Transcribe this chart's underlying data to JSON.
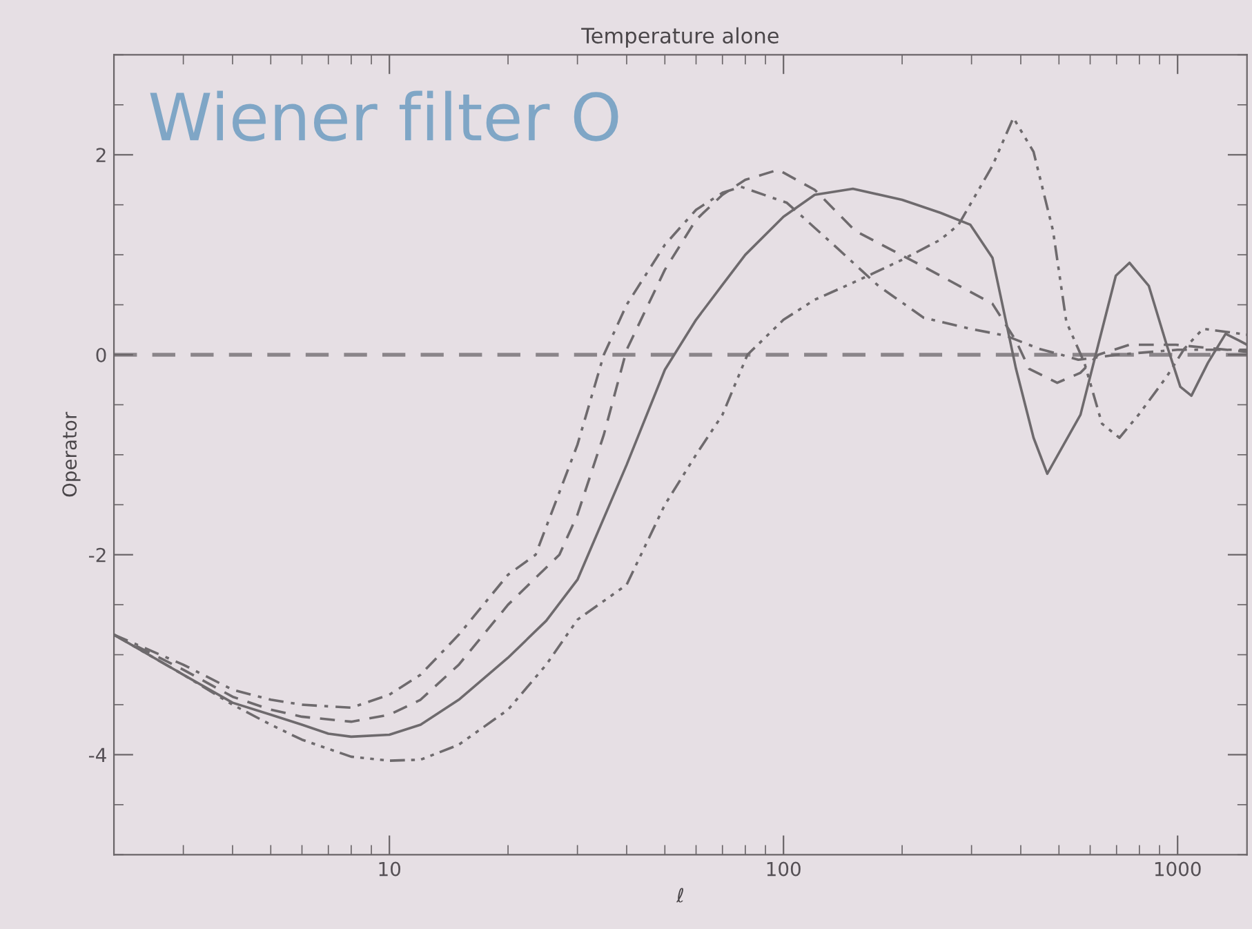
{
  "chart_data": {
    "type": "line",
    "title": "Temperature alone",
    "xlabel": "ℓ",
    "ylabel": "Operator",
    "annotations": [
      "Wiener filter O"
    ],
    "log": "x",
    "xlim": [
      2,
      1500
    ],
    "xticks": [
      10,
      100,
      1000
    ],
    "ylim": [
      -5,
      3
    ],
    "yticks": [
      -4,
      -2,
      0,
      2
    ],
    "grid": false,
    "legend": false,
    "marker": "none",
    "ref_lines": [
      {
        "axis": "y",
        "value": 0,
        "color": "#8a8589",
        "line_style": "dashed"
      }
    ],
    "series": [
      {
        "color": "#6e6a6d",
        "line_style": "solid",
        "x": [
          2,
          3,
          4,
          5,
          6,
          7,
          8,
          10,
          12,
          15,
          20,
          25,
          30,
          40,
          50,
          60,
          70,
          80,
          100,
          120,
          150,
          200,
          250,
          298,
          339,
          367,
          389,
          431,
          467,
          567,
          629,
          697,
          755,
          845,
          938,
          1016,
          1084,
          1194,
          1324,
          1435,
          1500
        ],
        "values": [
          -2.8,
          -3.2,
          -3.48,
          -3.6,
          -3.7,
          -3.79,
          -3.82,
          -3.8,
          -3.7,
          -3.45,
          -3.03,
          -2.66,
          -2.25,
          -1.1,
          -0.15,
          0.35,
          0.7,
          1.0,
          1.38,
          1.6,
          1.66,
          1.55,
          1.42,
          1.3,
          0.97,
          0.33,
          -0.14,
          -0.83,
          -1.19,
          -0.6,
          0.1,
          0.79,
          0.92,
          0.69,
          0.1,
          -0.32,
          -0.41,
          -0.08,
          0.21,
          0.14,
          0.1
        ]
      },
      {
        "color": "#6e6a6d",
        "line_style": "dashed",
        "x": [
          2,
          3,
          4,
          5,
          6,
          8,
          10,
          12,
          15,
          20,
          27,
          30,
          35,
          40,
          50,
          60,
          70,
          80,
          97,
          120,
          152,
          227,
          339,
          389,
          420,
          495,
          567,
          629,
          755,
          990,
          1500
        ],
        "values": [
          -2.8,
          -3.15,
          -3.42,
          -3.55,
          -3.62,
          -3.67,
          -3.6,
          -3.45,
          -3.1,
          -2.5,
          -2.0,
          -1.6,
          -0.8,
          0.05,
          0.85,
          1.35,
          1.6,
          1.75,
          1.85,
          1.65,
          1.24,
          0.88,
          0.51,
          0.14,
          -0.14,
          -0.28,
          -0.18,
          0.0,
          0.1,
          0.1,
          0.03
        ]
      },
      {
        "color": "#6e6a6d",
        "line_style": "dashdot",
        "x": [
          2,
          3,
          4,
          5,
          6,
          8,
          10,
          12,
          15,
          20,
          23.5,
          30,
          35,
          40,
          50,
          60,
          70,
          78,
          102,
          134,
          174,
          227,
          298,
          367,
          445,
          507,
          560,
          700,
          1000,
          1500
        ],
        "values": [
          -2.8,
          -3.1,
          -3.35,
          -3.45,
          -3.5,
          -3.53,
          -3.4,
          -3.2,
          -2.8,
          -2.2,
          -2.0,
          -0.9,
          0.0,
          0.5,
          1.1,
          1.45,
          1.62,
          1.68,
          1.52,
          1.1,
          0.69,
          0.37,
          0.26,
          0.19,
          0.06,
          0.0,
          -0.05,
          0.0,
          0.05,
          0.05
        ]
      },
      {
        "color": "#6e6a6d",
        "line_style": "dashdotdot",
        "x": [
          2,
          3,
          4,
          5,
          6,
          8,
          10,
          12,
          15,
          20,
          25,
          30,
          40,
          50,
          60,
          70,
          81,
          100,
          120,
          150,
          200,
          250,
          278,
          339,
          383,
          431,
          483,
          522,
          580,
          643,
          712,
          800,
          938,
          1040,
          1160,
          1324,
          1500
        ],
        "values": [
          -2.8,
          -3.2,
          -3.5,
          -3.7,
          -3.85,
          -4.02,
          -4.06,
          -4.05,
          -3.9,
          -3.55,
          -3.1,
          -2.65,
          -2.3,
          -1.5,
          -1.0,
          -0.6,
          0.0,
          0.35,
          0.55,
          0.72,
          0.95,
          1.15,
          1.3,
          1.89,
          2.37,
          2.03,
          1.24,
          0.33,
          -0.08,
          -0.69,
          -0.83,
          -0.59,
          -0.22,
          0.06,
          0.26,
          0.23,
          0.2
        ]
      }
    ]
  }
}
